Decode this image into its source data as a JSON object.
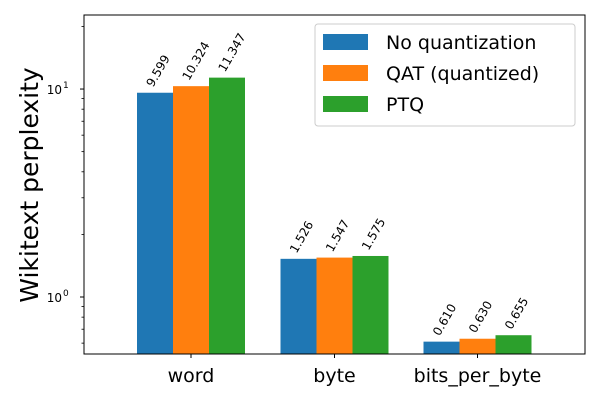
{
  "chart_data": {
    "type": "bar",
    "title": "",
    "xlabel": "",
    "ylabel": "Wikitext perplexity",
    "yscale": "log",
    "ylim": [
      0.532,
      22.7
    ],
    "grid": false,
    "legend_position": "upper right",
    "categories": [
      "word",
      "byte",
      "bits_per_byte"
    ],
    "series": [
      {
        "name": "No quantization",
        "color": "#1f77b4",
        "values": [
          9.599,
          1.526,
          0.61
        ],
        "labels": [
          "9.599",
          "1.526",
          "0.610"
        ]
      },
      {
        "name": "QAT (quantized)",
        "color": "#ff7f0e",
        "values": [
          10.324,
          1.547,
          0.63
        ],
        "labels": [
          "10.324",
          "1.547",
          "0.630"
        ]
      },
      {
        "name": "PTQ",
        "color": "#2ca02c",
        "values": [
          11.347,
          1.575,
          0.655
        ],
        "labels": [
          "11.347",
          "1.575",
          "0.655"
        ]
      }
    ],
    "y_major_ticks": [
      {
        "value": 1,
        "label_base": "10",
        "label_exp": "0"
      },
      {
        "value": 10,
        "label_base": "10",
        "label_exp": "1"
      }
    ],
    "bar_label_rotation": 60
  }
}
